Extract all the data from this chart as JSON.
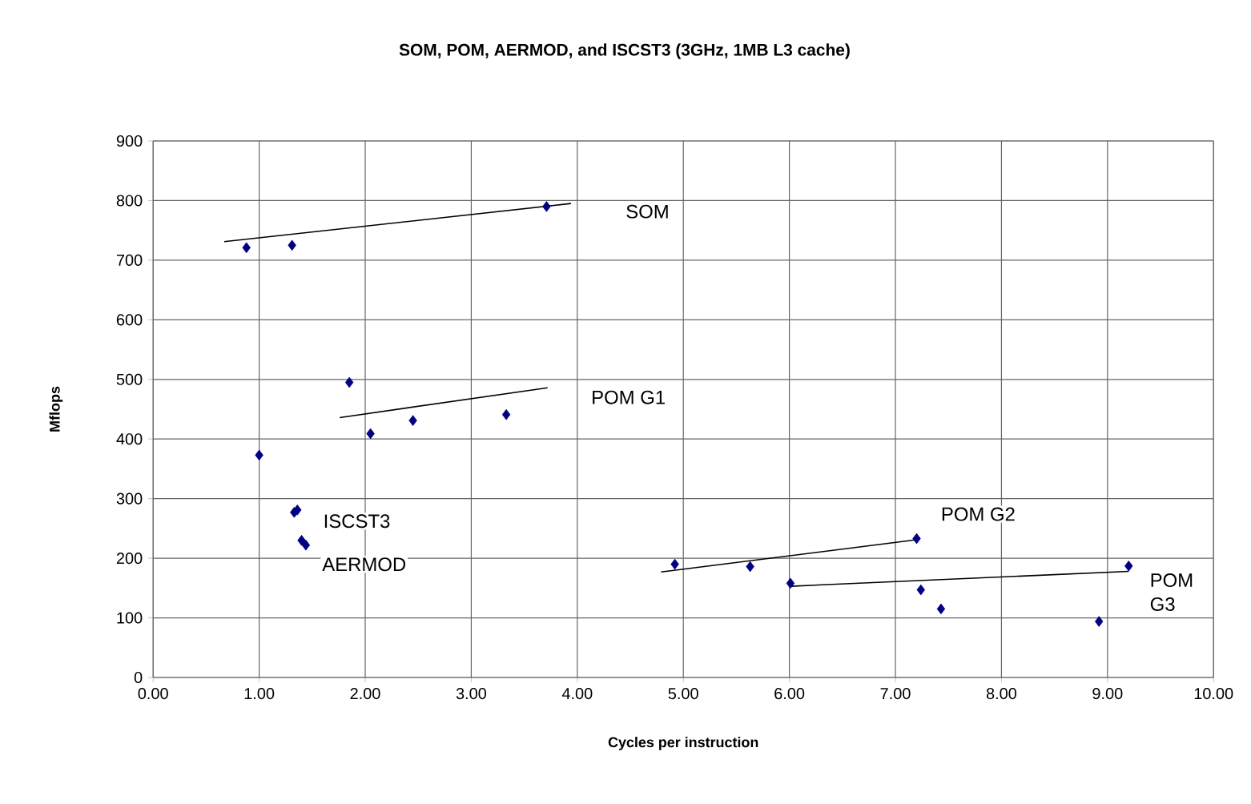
{
  "chart_data": {
    "type": "scatter",
    "title": "SOM, POM, AERMOD, and ISCST3 (3GHz, 1MB L3 cache)",
    "xlabel": "Cycles per instruction",
    "ylabel": "Mflops",
    "xlim": [
      0,
      10
    ],
    "ylim": [
      0,
      900
    ],
    "xticks": [
      {
        "value": 0,
        "label": "0.00"
      },
      {
        "value": 1,
        "label": "1.00"
      },
      {
        "value": 2,
        "label": "2.00"
      },
      {
        "value": 3,
        "label": "3.00"
      },
      {
        "value": 4,
        "label": "4.00"
      },
      {
        "value": 5,
        "label": "5.00"
      },
      {
        "value": 6,
        "label": "6.00"
      },
      {
        "value": 7,
        "label": "7.00"
      },
      {
        "value": 8,
        "label": "8.00"
      },
      {
        "value": 9,
        "label": "9.00"
      },
      {
        "value": 10,
        "label": "10.00"
      }
    ],
    "yticks": [
      0,
      100,
      200,
      300,
      400,
      500,
      600,
      700,
      800,
      900
    ],
    "grid": true,
    "marker": "diamond",
    "series": [
      {
        "color": "#000080",
        "x": [
          0.88,
          1.31,
          3.71,
          1.85,
          2.05,
          2.45,
          3.33,
          1.0,
          4.92,
          5.63,
          6.01,
          7.2,
          7.24,
          7.43,
          8.92,
          9.2
        ],
        "values": [
          721,
          725,
          790,
          495,
          409,
          431,
          441,
          373,
          190,
          186,
          158,
          233,
          147,
          115,
          94,
          187
        ]
      },
      {
        "name": "ISCST3",
        "color": "#000080",
        "x": [
          1.33,
          1.36
        ],
        "values": [
          277,
          281
        ]
      },
      {
        "name": "AERMOD",
        "color": "#000080",
        "x": [
          1.4,
          1.44
        ],
        "values": [
          230,
          222
        ]
      },
      {
        "name": "SOM",
        "type": "line",
        "marker": "none",
        "color": "#000000",
        "x": [
          0.67,
          3.94
        ],
        "values": [
          731,
          795
        ]
      },
      {
        "name": "POM G1",
        "type": "line",
        "marker": "none",
        "color": "#000000",
        "x": [
          1.76,
          3.72
        ],
        "values": [
          436,
          486
        ]
      },
      {
        "name": "POM G2",
        "type": "line",
        "marker": "none",
        "color": "#000000",
        "x": [
          4.79,
          7.2
        ],
        "values": [
          177,
          231
        ]
      },
      {
        "name": "POM G3",
        "type": "line",
        "marker": "none",
        "color": "#000000",
        "x": [
          6.01,
          9.2
        ],
        "values": [
          153,
          178
        ]
      }
    ]
  }
}
